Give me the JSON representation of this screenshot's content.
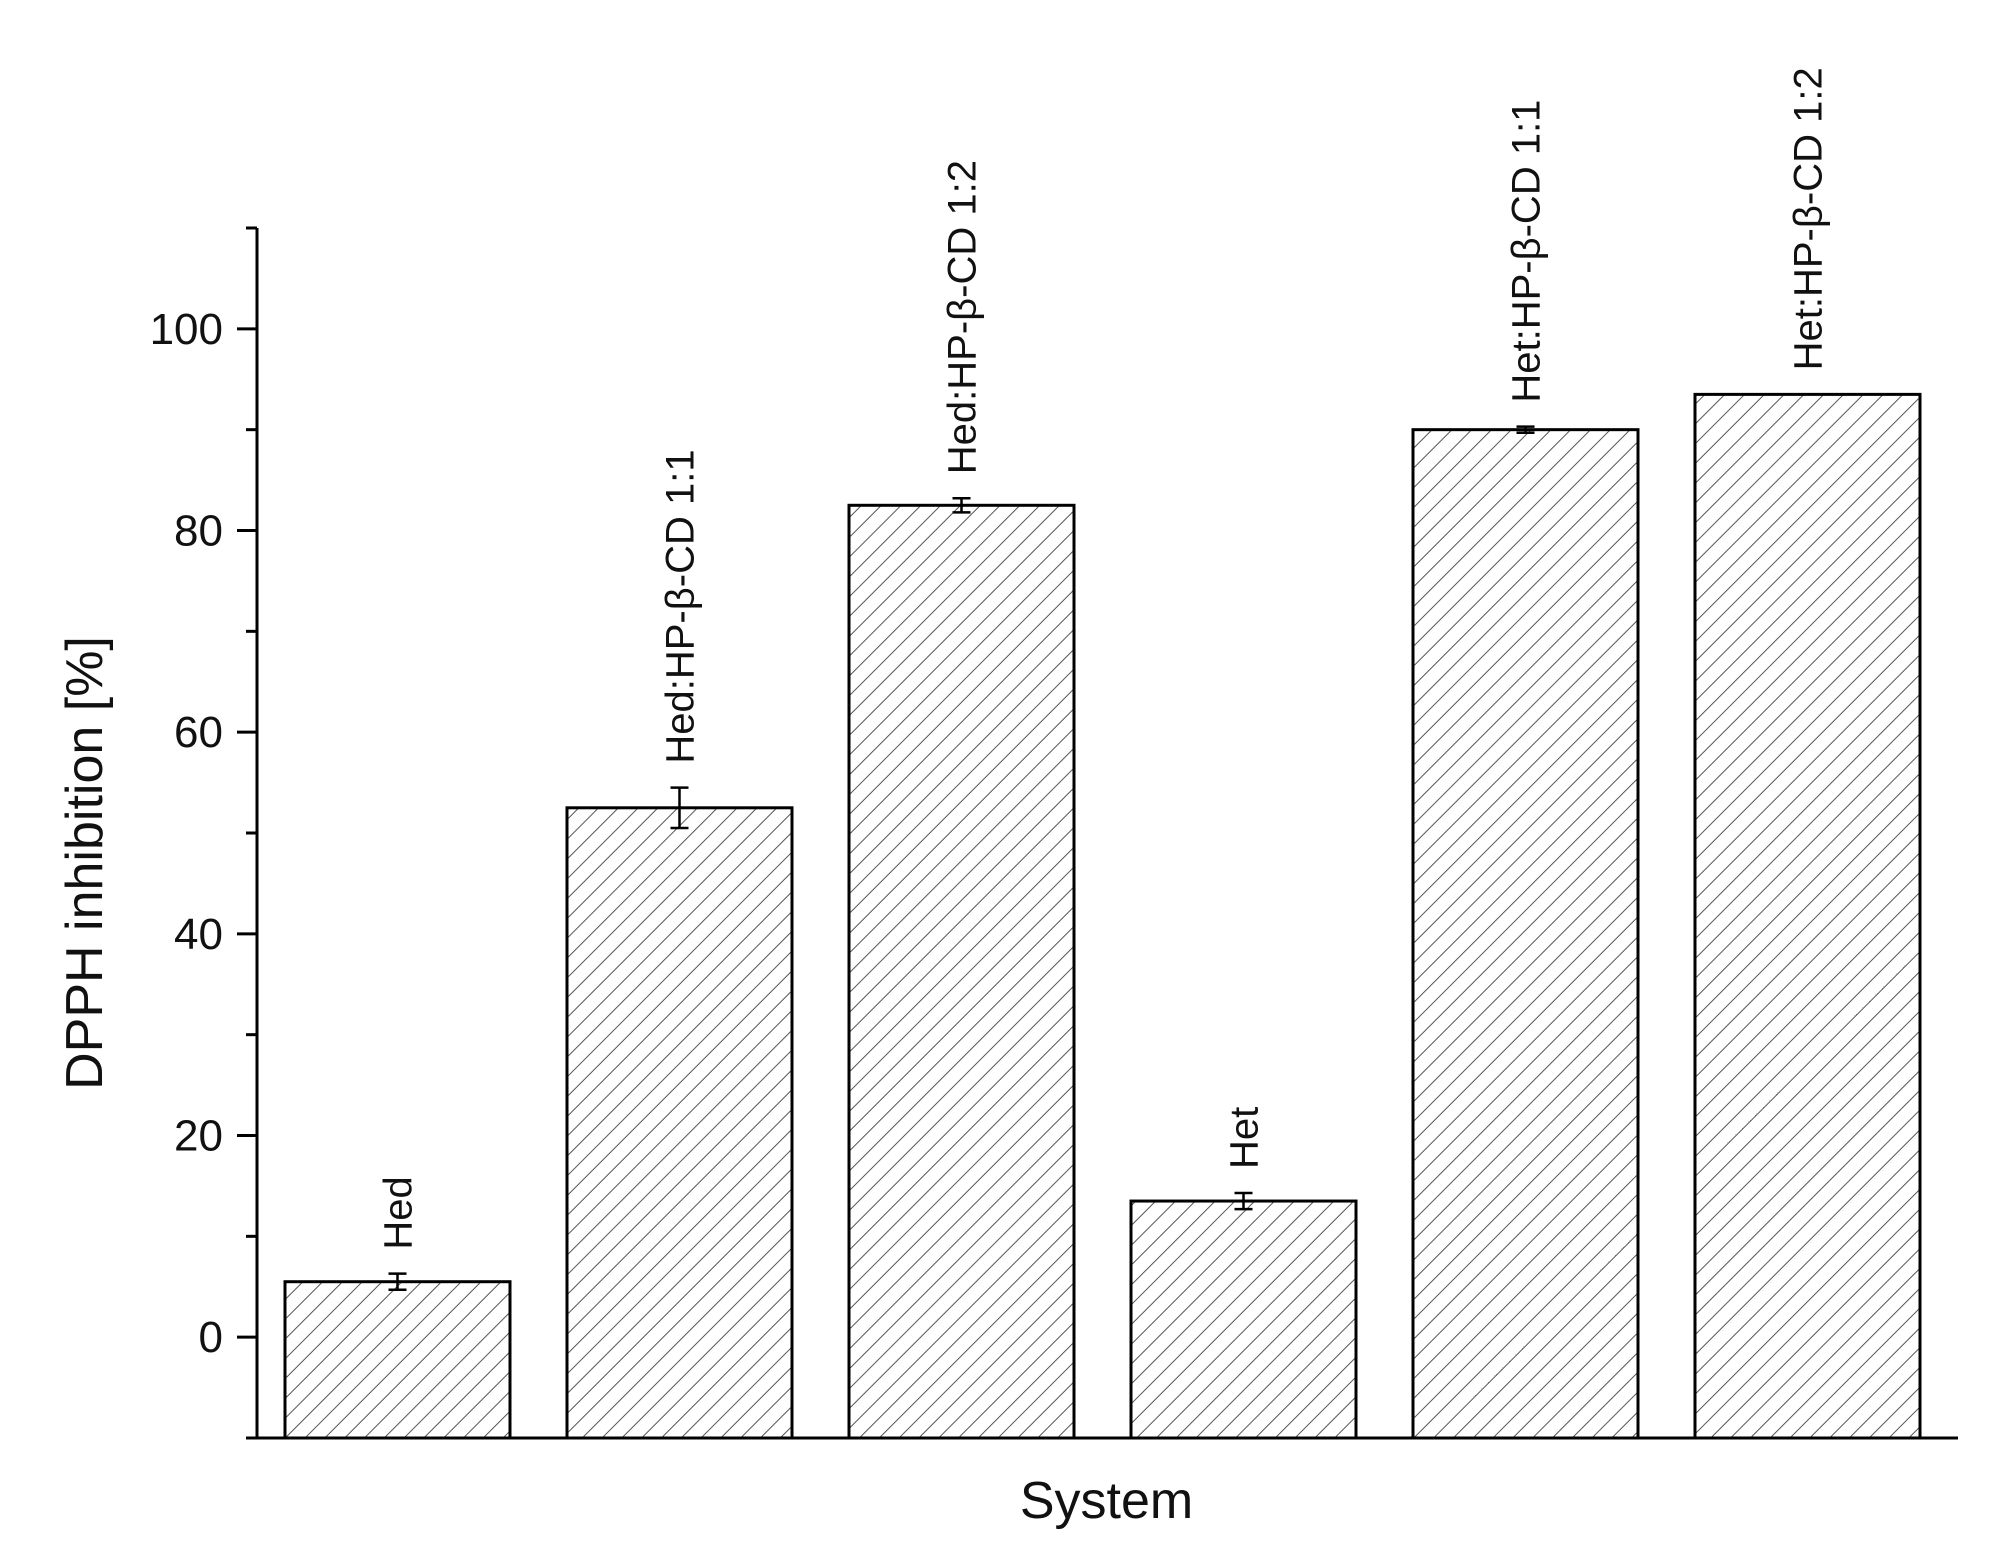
{
  "chart_data": {
    "type": "bar",
    "title": "",
    "xlabel": "System",
    "ylabel": "DPPH inhibition [%]",
    "ylim": [
      -10,
      110
    ],
    "yticks": [
      0,
      20,
      40,
      60,
      80,
      100
    ],
    "grid": false,
    "legend": "none",
    "categories": [
      "Hed",
      "Hed:HP-β-CD 1:1",
      "Hed:HP-β-CD 1:2",
      "Het",
      "Het:HP-β-CD 1:1",
      "Het:HP-β-CD 1:2"
    ],
    "values": [
      5.5,
      52.5,
      82.5,
      13.5,
      90.0,
      93.5
    ],
    "errors": [
      0.8,
      2.0,
      0.7,
      0.8,
      0.3,
      0.0
    ],
    "colors": {
      "bar_fill": "#ffffff",
      "hatch": "#555555",
      "outline": "#000000"
    }
  }
}
